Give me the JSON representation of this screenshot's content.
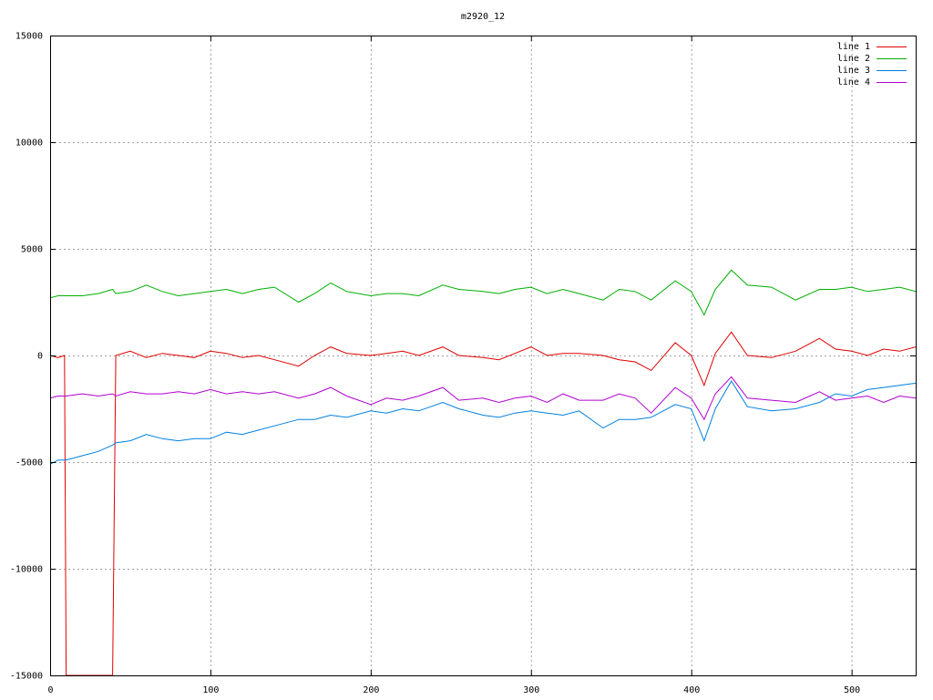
{
  "chart_data": {
    "type": "line",
    "title": "m2920_12",
    "x": [
      0,
      5,
      9,
      10,
      20,
      30,
      39,
      41,
      50,
      60,
      70,
      80,
      90,
      100,
      110,
      120,
      130,
      140,
      155,
      165,
      175,
      185,
      200,
      210,
      220,
      230,
      245,
      255,
      270,
      280,
      290,
      300,
      310,
      320,
      330,
      345,
      355,
      365,
      375,
      390,
      400,
      408,
      415,
      425,
      435,
      450,
      465,
      480,
      490,
      500,
      510,
      520,
      530,
      540
    ],
    "series": [
      {
        "name": "line 1",
        "color": "#e00000",
        "values": [
          0,
          -100,
          0,
          -15000,
          -15000,
          -15000,
          -15000,
          0,
          200,
          -100,
          100,
          0,
          -100,
          200,
          100,
          -100,
          0,
          -200,
          -500,
          0,
          400,
          100,
          0,
          100,
          200,
          0,
          400,
          0,
          -100,
          -200,
          100,
          400,
          0,
          100,
          100,
          0,
          -200,
          -300,
          -700,
          600,
          0,
          -1400,
          100,
          1100,
          0,
          -100,
          200,
          800,
          300,
          200,
          0,
          300,
          200,
          400
        ]
      },
      {
        "name": "line 2",
        "color": "#00b000",
        "values": [
          2700,
          2800,
          2800,
          2800,
          2800,
          2900,
          3100,
          2900,
          3000,
          3300,
          3000,
          2800,
          2900,
          3000,
          3100,
          2900,
          3100,
          3200,
          2500,
          2900,
          3400,
          3000,
          2800,
          2900,
          2900,
          2800,
          3300,
          3100,
          3000,
          2900,
          3100,
          3200,
          2900,
          3100,
          2900,
          2600,
          3100,
          3000,
          2600,
          3500,
          3000,
          1900,
          3100,
          4000,
          3300,
          3200,
          2600,
          3100,
          3100,
          3200,
          3000,
          3100,
          3200,
          3000
        ]
      },
      {
        "name": "line 3",
        "color": "#0080e0",
        "values": [
          -5100,
          -4900,
          -4900,
          -4900,
          -4700,
          -4500,
          -4200,
          -4100,
          -4000,
          -3700,
          -3900,
          -4000,
          -3900,
          -3900,
          -3600,
          -3700,
          -3500,
          -3300,
          -3000,
          -3000,
          -2800,
          -2900,
          -2600,
          -2700,
          -2500,
          -2600,
          -2200,
          -2500,
          -2800,
          -2900,
          -2700,
          -2600,
          -2700,
          -2800,
          -2600,
          -3400,
          -3000,
          -3000,
          -2900,
          -2300,
          -2500,
          -4000,
          -2500,
          -1200,
          -2400,
          -2600,
          -2500,
          -2200,
          -1800,
          -1900,
          -1600,
          -1500,
          -1400,
          -1300
        ]
      },
      {
        "name": "line 4",
        "color": "#b000d0",
        "values": [
          -2000,
          -1900,
          -1900,
          -1900,
          -1800,
          -1900,
          -1800,
          -1900,
          -1700,
          -1800,
          -1800,
          -1700,
          -1800,
          -1600,
          -1800,
          -1700,
          -1800,
          -1700,
          -2000,
          -1800,
          -1500,
          -1900,
          -2300,
          -2000,
          -2100,
          -1900,
          -1500,
          -2100,
          -2000,
          -2200,
          -2000,
          -1900,
          -2200,
          -1800,
          -2100,
          -2100,
          -1800,
          -2000,
          -2700,
          -1500,
          -2000,
          -3000,
          -1800,
          -1000,
          -2000,
          -2100,
          -2200,
          -1700,
          -2100,
          -2000,
          -1900,
          -2200,
          -1900,
          -2000
        ]
      }
    ],
    "xlim": [
      0,
      540
    ],
    "xticks": [
      0,
      100,
      200,
      300,
      400,
      500
    ],
    "ylim": [
      -15000,
      15000
    ],
    "yticks": [
      -15000,
      -10000,
      -5000,
      0,
      5000,
      10000,
      15000
    ],
    "grid": true,
    "legend": "top-right"
  }
}
